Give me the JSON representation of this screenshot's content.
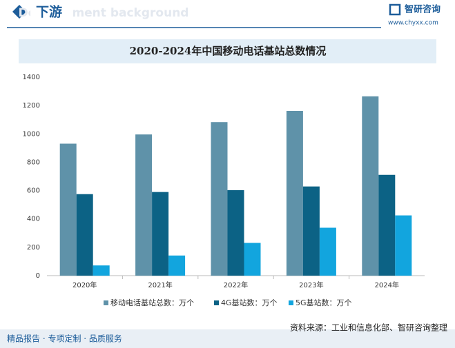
{
  "header": {
    "section": "下游",
    "watermark": "Development background",
    "brand": "智研咨询",
    "url": "www.chyxx.com"
  },
  "footer": {
    "slogan": "精品报告 · 专项定制 · 品质服务",
    "source": "资料来源：工业和信息化部、智研咨询整理"
  },
  "chart_data": {
    "type": "bar",
    "title": "2020-2024年中国移动电话基站总数情况",
    "categories": [
      "2020年",
      "2021年",
      "2022年",
      "2023年",
      "2024年"
    ],
    "series": [
      {
        "name": "移动电话基站总数：万个",
        "color": "#5f92a9",
        "values": [
          931,
          996,
          1083,
          1162,
          1265
        ]
      },
      {
        "name": "4G基站数：万个",
        "color": "#0c6285",
        "values": [
          575,
          590,
          603,
          629,
          711
        ]
      },
      {
        "name": "5G基站数：万个",
        "color": "#12a5de",
        "values": [
          72,
          142,
          231,
          338,
          425
        ]
      }
    ],
    "ylim": [
      0,
      1400
    ],
    "yticks": [
      0,
      200,
      400,
      600,
      800,
      1000,
      1200,
      1400
    ],
    "legend": "bottom"
  }
}
